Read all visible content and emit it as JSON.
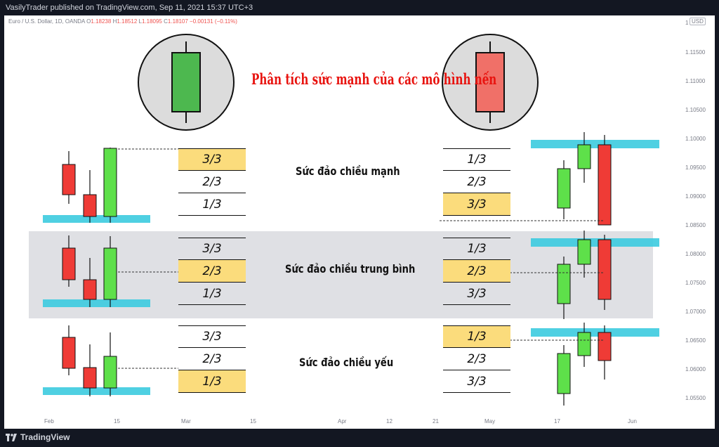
{
  "header": {
    "publisher_line": "VasilyTrader published on TradingView.com, Sep 11, 2021 15:37 UTC+3"
  },
  "legend": {
    "symbol": "Euro / U.S. Dollar, 1D, OANDA",
    "o_label": "O",
    "o": "1.18238",
    "h_label": "H",
    "h": "1.18512",
    "l_label": "L",
    "l": "1.18095",
    "c_label": "C",
    "c": "1.18107",
    "change": "−0.00131 (−0.11%)"
  },
  "currency_badge": "USD",
  "y_axis": {
    "top_label": "1",
    "ticks": [
      "1.11500",
      "1.11000",
      "1.10500",
      "1.10000",
      "1.09500",
      "1.09000",
      "1.08500",
      "1.08000",
      "1.07500",
      "1.07000",
      "1.06500",
      "1.06000",
      "1.05500"
    ]
  },
  "x_axis": {
    "ticks": [
      "Feb",
      "15",
      "Mar",
      "15",
      "Apr",
      "12",
      "21",
      "May",
      "17",
      "Jun"
    ]
  },
  "title": "Phân tích sức mạnh của các mô hình nến",
  "rows": [
    {
      "label": "Sức đảo chiều mạnh",
      "left_cells": [
        "3/3",
        "2/3",
        "1/3"
      ],
      "right_cells": [
        "1/3",
        "2/3",
        "3/3"
      ]
    },
    {
      "label": "Sức đảo chiều trung bình",
      "left_cells": [
        "3/3",
        "2/3",
        "1/3"
      ],
      "right_cells": [
        "1/3",
        "2/3",
        "3/3"
      ]
    },
    {
      "label": "Sức đảo chiều yếu",
      "left_cells": [
        "3/3",
        "2/3",
        "1/3"
      ],
      "right_cells": [
        "1/3",
        "2/3",
        "3/3"
      ]
    }
  ],
  "footer": {
    "brand": "TradingView"
  },
  "colors": {
    "bull": "#5ee04a",
    "bear": "#ef3b36",
    "level": "#3ccbdf",
    "highlight": "#fbdc7c",
    "band": "#dfe0e4",
    "title": "#e8130f",
    "icon_bull": "#4db84f",
    "icon_bear": "#f07068",
    "icon_bg": "#dcdcdc"
  }
}
